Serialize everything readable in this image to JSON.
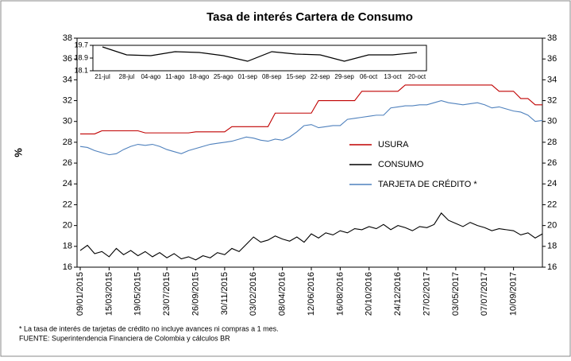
{
  "chart_data": [
    {
      "type": "line",
      "title": "Tasa de interés Cartera de Consumo",
      "ylabel": "%",
      "categories": [
        "09/01/2015",
        null,
        null,
        null,
        "15/03/2015",
        null,
        null,
        null,
        "19/05/2015",
        null,
        null,
        null,
        "23/07/2015",
        null,
        null,
        null,
        "26/09/2015",
        null,
        null,
        null,
        "30/11/2015",
        null,
        null,
        null,
        "03/02/2016",
        null,
        null,
        null,
        "08/04/2016",
        null,
        null,
        null,
        "12/06/2016",
        null,
        null,
        null,
        "16/08/2016",
        null,
        null,
        null,
        "20/10/2016",
        null,
        null,
        null,
        "24/12/2016",
        null,
        null,
        null,
        "27/02/2017",
        null,
        null,
        null,
        "03/05/2017",
        null,
        null,
        null,
        "07/07/2017",
        null,
        null,
        null,
        "10/09/2017",
        null,
        null,
        null,
        null
      ],
      "series": [
        {
          "name": "USURA",
          "color": "#c00000",
          "values": [
            28.8,
            28.8,
            28.8,
            29.1,
            29.1,
            29.1,
            29.1,
            29.1,
            29.1,
            28.9,
            28.9,
            28.9,
            28.9,
            28.9,
            28.9,
            28.9,
            29.0,
            29.0,
            29.0,
            29.0,
            29.0,
            29.5,
            29.5,
            29.5,
            29.5,
            29.5,
            29.5,
            30.8,
            30.8,
            30.8,
            30.8,
            30.8,
            30.8,
            32.0,
            32.0,
            32.0,
            32.0,
            32.0,
            32.0,
            32.9,
            32.9,
            32.9,
            32.9,
            32.9,
            32.9,
            33.5,
            33.5,
            33.5,
            33.5,
            33.5,
            33.5,
            33.5,
            33.5,
            33.5,
            33.5,
            33.5,
            33.5,
            33.5,
            32.9,
            32.9,
            32.9,
            32.2,
            32.2,
            31.6,
            31.6
          ]
        },
        {
          "name": "CONSUMO",
          "color": "#000000",
          "values": [
            17.6,
            18.1,
            17.3,
            17.5,
            17.0,
            17.8,
            17.2,
            17.6,
            17.1,
            17.5,
            17.0,
            17.4,
            16.9,
            17.3,
            16.8,
            17.0,
            16.7,
            17.1,
            16.9,
            17.4,
            17.2,
            17.8,
            17.5,
            18.2,
            18.9,
            18.4,
            18.6,
            19.0,
            18.7,
            18.5,
            18.9,
            18.4,
            19.2,
            18.8,
            19.3,
            19.1,
            19.5,
            19.3,
            19.7,
            19.6,
            19.9,
            19.7,
            20.1,
            19.6,
            20.0,
            19.8,
            19.5,
            19.9,
            19.8,
            20.1,
            21.2,
            20.5,
            20.2,
            19.9,
            20.3,
            20.0,
            19.8,
            19.5,
            19.7,
            19.6,
            19.5,
            19.1,
            19.3,
            18.8,
            19.2
          ]
        },
        {
          "name": "TARJETA DE CRÉDITO *",
          "color": "#4f81bd",
          "values": [
            27.6,
            27.5,
            27.2,
            27.0,
            26.8,
            26.9,
            27.3,
            27.6,
            27.8,
            27.7,
            27.8,
            27.6,
            27.3,
            27.1,
            26.9,
            27.2,
            27.4,
            27.6,
            27.8,
            27.9,
            28.0,
            28.1,
            28.3,
            28.5,
            28.4,
            28.2,
            28.1,
            28.3,
            28.2,
            28.5,
            29.0,
            29.6,
            29.7,
            29.4,
            29.5,
            29.6,
            29.6,
            30.2,
            30.3,
            30.4,
            30.5,
            30.6,
            30.6,
            31.3,
            31.4,
            31.5,
            31.5,
            31.6,
            31.6,
            31.8,
            32.0,
            31.8,
            31.7,
            31.6,
            31.7,
            31.8,
            31.6,
            31.3,
            31.4,
            31.2,
            31.0,
            30.9,
            30.6,
            30.0,
            30.1
          ]
        }
      ],
      "ylim": [
        16,
        38
      ],
      "yticks": [
        16,
        18,
        20,
        22,
        24,
        26,
        28,
        30,
        32,
        34,
        36,
        38
      ],
      "y2lim": [
        16,
        38
      ],
      "y2ticks": [
        16,
        18,
        20,
        22,
        24,
        26,
        28,
        30,
        32,
        34,
        36,
        38
      ],
      "legend": "right",
      "notes": [
        "* La tasa de interés de tarjetas de crédito no incluye avances ni compras a 1 mes.",
        "FUENTE: Superintendencia Financiera de Colombia y cálculos BR"
      ]
    },
    {
      "type": "line",
      "categories": [
        "21-jul",
        "28-jul",
        "04-ago",
        "11-ago",
        "18-ago",
        "25-ago",
        "01-sep",
        "08-sep",
        "15-sep",
        "22-sep",
        "29-sep",
        "06-oct",
        "13-oct",
        "20-oct"
      ],
      "series": [
        {
          "color": "#000000",
          "values": [
            19.6,
            19.1,
            19.05,
            19.3,
            19.25,
            19.05,
            18.7,
            19.3,
            19.15,
            19.1,
            18.7,
            19.1,
            19.1,
            19.25
          ]
        }
      ],
      "ylim": [
        18.1,
        19.7
      ],
      "yticks": [
        18.1,
        18.9,
        19.7
      ]
    }
  ]
}
